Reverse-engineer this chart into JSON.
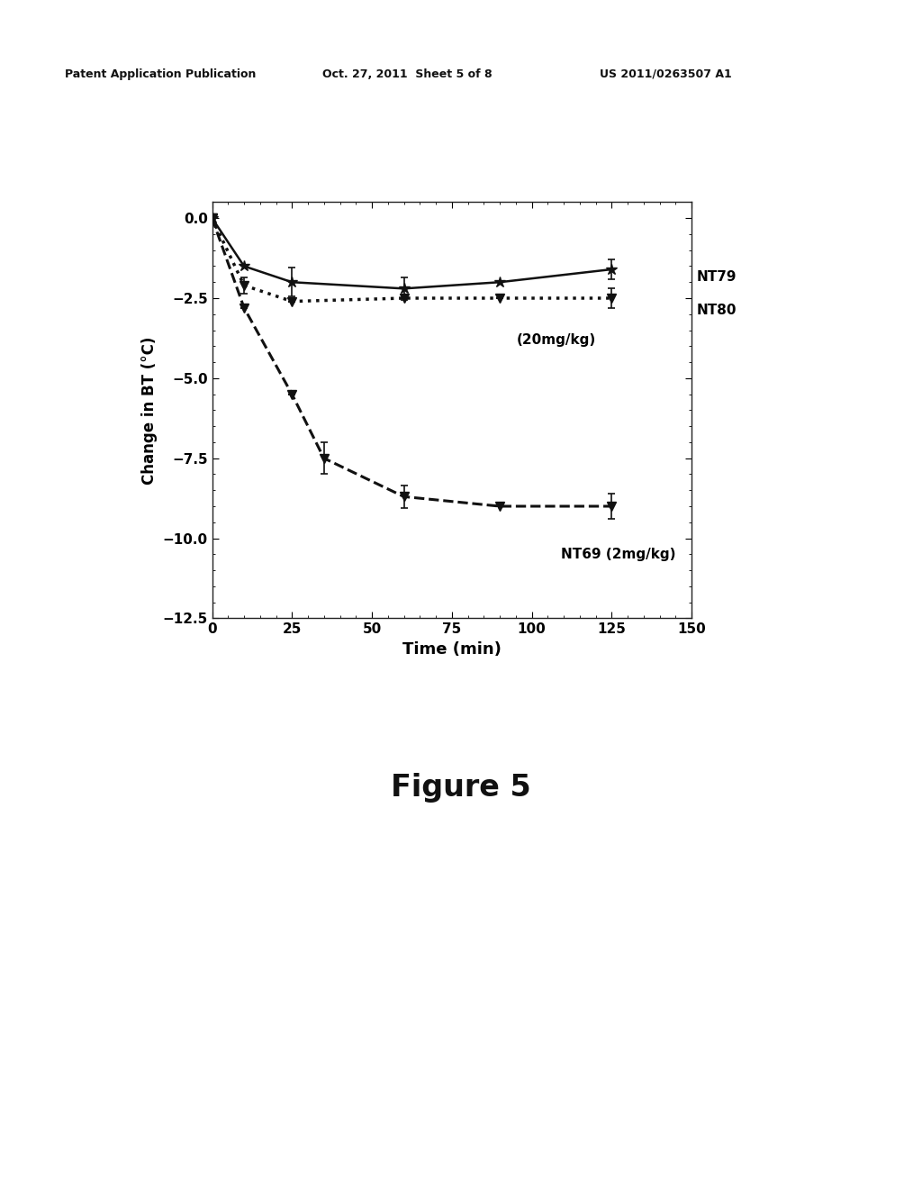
{
  "NT79": {
    "x": [
      0,
      10,
      25,
      60,
      90,
      125
    ],
    "y": [
      0.0,
      -1.5,
      -2.0,
      -2.2,
      -2.0,
      -1.6
    ],
    "yerr": [
      0.0,
      0.0,
      0.45,
      0.35,
      0.0,
      0.3
    ],
    "label": "NT79",
    "linestyle": "solid",
    "linewidth": 1.8,
    "marker": "*",
    "markersize": 9,
    "color": "#111111"
  },
  "NT80": {
    "x": [
      0,
      10,
      25,
      60,
      90,
      125
    ],
    "y": [
      0.0,
      -2.1,
      -2.6,
      -2.5,
      -2.5,
      -2.5
    ],
    "yerr": [
      0.0,
      0.25,
      0.0,
      0.0,
      0.0,
      0.3
    ],
    "label": "NT80",
    "linestyle": "dotted",
    "linewidth": 2.5,
    "marker": "v",
    "markersize": 7,
    "color": "#111111"
  },
  "NT69": {
    "x": [
      0,
      10,
      25,
      35,
      60,
      90,
      125
    ],
    "y": [
      0.0,
      -2.8,
      -5.5,
      -7.5,
      -8.7,
      -9.0,
      -9.0
    ],
    "yerr": [
      0.0,
      0.0,
      0.0,
      0.5,
      0.35,
      0.0,
      0.4
    ],
    "label": "NT69",
    "linestyle": "dashed",
    "linewidth": 2.2,
    "marker": "v",
    "markersize": 7,
    "color": "#111111"
  },
  "xlabel": "Time (min)",
  "ylabel": "Change in BT (°C)",
  "xlim": [
    0,
    150
  ],
  "ylim": [
    -12.5,
    0.5
  ],
  "xticks": [
    0,
    25,
    50,
    75,
    100,
    125,
    150
  ],
  "yticks": [
    0.0,
    -2.5,
    -5.0,
    -7.5,
    -10.0,
    -12.5
  ],
  "figure_caption": "Figure 5",
  "header_left": "Patent Application Publication",
  "header_mid": "Oct. 27, 2011  Sheet 5 of 8",
  "header_right": "US 2011/0263507 A1",
  "annotation_NT79": "NT79",
  "annotation_NT80": "NT80",
  "annotation_20mgkg": "(20mg/kg)",
  "annotation_NT69": "NT69 (2mg/kg)",
  "background_color": "#ffffff"
}
